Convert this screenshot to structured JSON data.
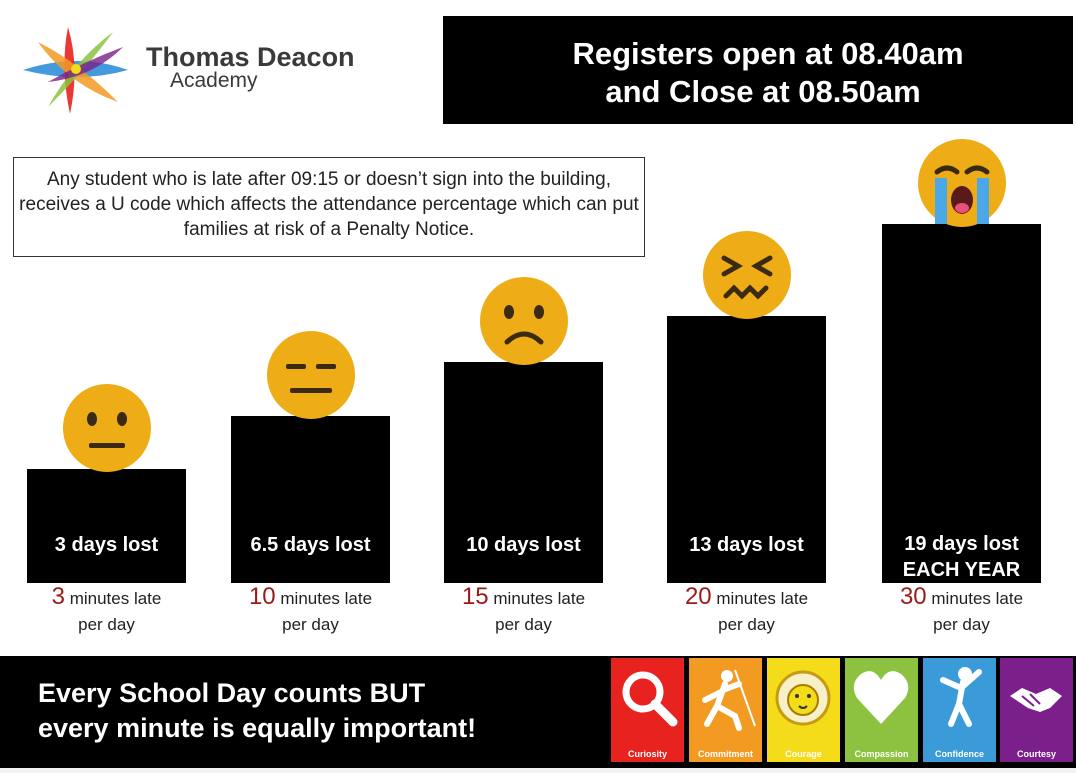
{
  "brand": {
    "name": "Thomas Deacon",
    "sub": "Academy"
  },
  "registers": {
    "line1": "Registers open at 08.40am",
    "line2": "and Close at 08.50am"
  },
  "notice": {
    "text": "Any student who is late after 09:15 or doesn’t sign into the building, receives a U code which affects the attendance percentage which can put families at risk of a Penalty Notice."
  },
  "chart_data": {
    "type": "bar",
    "categories": [
      "3 minutes late per day",
      "10 minutes late per day",
      "15 minutes late per day",
      "20 minutes late per day",
      "30 minutes late per day"
    ],
    "minutes_late_per_day": [
      3,
      10,
      15,
      20,
      30
    ],
    "days_lost": [
      3,
      6.5,
      10,
      13,
      19
    ],
    "bar_labels": [
      "3 days lost",
      "6.5 days lost",
      "10 days lost",
      "13 days lost",
      "19 days lost"
    ],
    "extra_label": "EACH YEAR",
    "emoji_icons": [
      "neutral-face-icon",
      "expressionless-face-icon",
      "frowning-face-icon",
      "confounded-face-icon",
      "crying-face-icon"
    ]
  },
  "captions": [
    {
      "num": "3",
      "unit": "minutes late",
      "per": "per day"
    },
    {
      "num": "10",
      "unit": "minutes late",
      "per": "per day"
    },
    {
      "num": "15",
      "unit": "minutes late",
      "per": "per day"
    },
    {
      "num": "20",
      "unit": "minutes late",
      "per": "per day"
    },
    {
      "num": "30",
      "unit": "minutes late",
      "per": "per day"
    }
  ],
  "footer": {
    "line1": "Every School Day counts BUT",
    "line2": "every minute is equally important!"
  },
  "values": [
    {
      "label": "Curiosity",
      "color": "#e8231f",
      "icon": "magnifier-icon"
    },
    {
      "label": "Commitment",
      "color": "#f39a22",
      "icon": "climber-icon"
    },
    {
      "label": "Courage",
      "color": "#f4dc1a",
      "icon": "lion-icon"
    },
    {
      "label": "Compassion",
      "color": "#8cc23f",
      "icon": "heart-icon"
    },
    {
      "label": "Confidence",
      "color": "#3a9bd8",
      "icon": "jumping-person-icon"
    },
    {
      "label": "Courtesy",
      "color": "#7b1f8a",
      "icon": "handshake-icon"
    }
  ]
}
